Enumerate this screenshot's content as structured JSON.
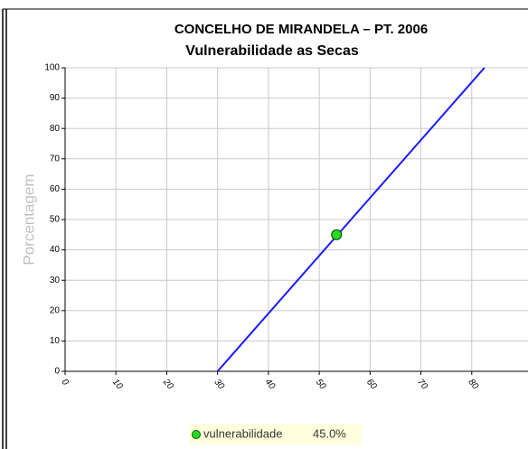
{
  "chart_data": {
    "type": "line",
    "title": "CONCELHO DE MIRANDELA – PT. 2006",
    "subtitle": "Vulnerabilidade as Secas",
    "y_label": "Porcentagem",
    "xlim": [
      0,
      90
    ],
    "ylim": [
      0,
      100
    ],
    "xticks": [
      0,
      10,
      20,
      30,
      40,
      50,
      60,
      70,
      80
    ],
    "yticks": [
      0,
      10,
      20,
      30,
      40,
      50,
      60,
      70,
      80,
      90,
      100
    ],
    "grid": true,
    "series": [
      {
        "x": [
          30,
          82.5
        ],
        "values": [
          0,
          100
        ],
        "color": "#1a1aff"
      },
      {
        "name": "vulnerabilidade",
        "x": [
          53.4
        ],
        "values": [
          45
        ],
        "value_labels": [
          "45.0%"
        ],
        "color": "#22dd22",
        "marker": true
      }
    ]
  }
}
